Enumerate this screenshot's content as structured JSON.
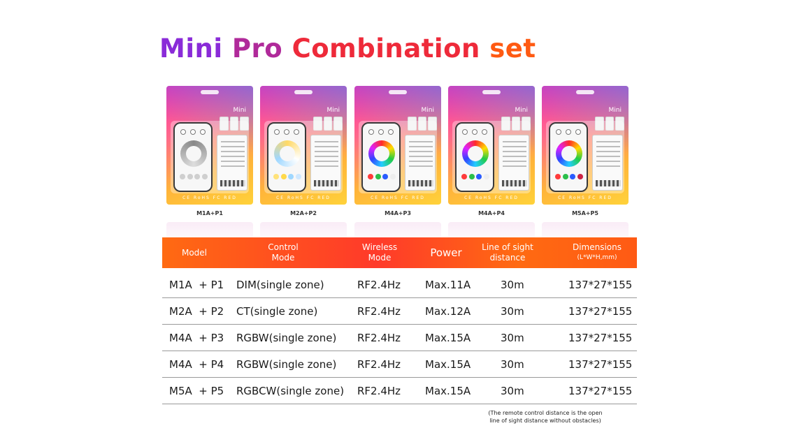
{
  "title": {
    "word1": "Mini",
    "word2": "Pro",
    "word3": "Combination",
    "word4": "set"
  },
  "products": [
    {
      "name": "M1A+P1",
      "brand": "Mini",
      "certs": "CE RoHS FC RED",
      "ring": "gray"
    },
    {
      "name": "M2A+P2",
      "brand": "Mini",
      "certs": "CE RoHS FC RED",
      "ring": "ct"
    },
    {
      "name": "M4A+P3",
      "brand": "Mini",
      "certs": "CE RoHS FC RED",
      "ring": "rgb"
    },
    {
      "name": "M4A+P4",
      "brand": "Mini",
      "certs": "CE RoHS FC RED",
      "ring": "rgb"
    },
    {
      "name": "M5A+P5",
      "brand": "Mini",
      "certs": "CE RoHS FC RED",
      "ring": "rgb"
    }
  ],
  "table": {
    "headers": {
      "model": "Model",
      "control_1": "Control",
      "control_2": "Mode",
      "wireless_1": "Wireless",
      "wireless_2": "Mode",
      "power": "Power",
      "los_1": "Line of sight",
      "los_2": "distance",
      "dim_1": "Dimensions",
      "dim_2": "(L*W*H,mm)"
    },
    "rows": [
      {
        "model_a": "M1A",
        "model_b": "+ P1",
        "control": "DIM(single  zone)",
        "wireless": "RF2.4Hz",
        "power": "Max.11A",
        "distance": "30m",
        "dimensions": "137*27*155"
      },
      {
        "model_a": "M2A",
        "model_b": "+ P2",
        "control": "CT(single zone)",
        "wireless": "RF2.4Hz",
        "power": "Max.12A",
        "distance": "30m",
        "dimensions": "137*27*155"
      },
      {
        "model_a": "M4A",
        "model_b": "+ P3",
        "control": "RGBW(single zone)",
        "wireless": "RF2.4Hz",
        "power": "Max.15A",
        "distance": "30m",
        "dimensions": "137*27*155"
      },
      {
        "model_a": "M4A",
        "model_b": "+ P4",
        "control": "RGBW(single zone)",
        "wireless": "RF2.4Hz",
        "power": "Max.15A",
        "distance": "30m",
        "dimensions": "137*27*155"
      },
      {
        "model_a": "M5A",
        "model_b": "+ P5",
        "control": "RGBCW(single zone)",
        "wireless": "RF2.4Hz",
        "power": "Max.15A",
        "distance": "30m",
        "dimensions": "137*27*155"
      }
    ],
    "note_1": "(The remote control distance is the open",
    "note_2": "line of sight distance without obstacles)"
  },
  "colors": {
    "title_purple": "#8a2bd8",
    "title_red": "#ee2a3a",
    "title_orange": "#ff5a12",
    "header_orange": "#ff6a12",
    "header_red": "#ff3a2a"
  }
}
